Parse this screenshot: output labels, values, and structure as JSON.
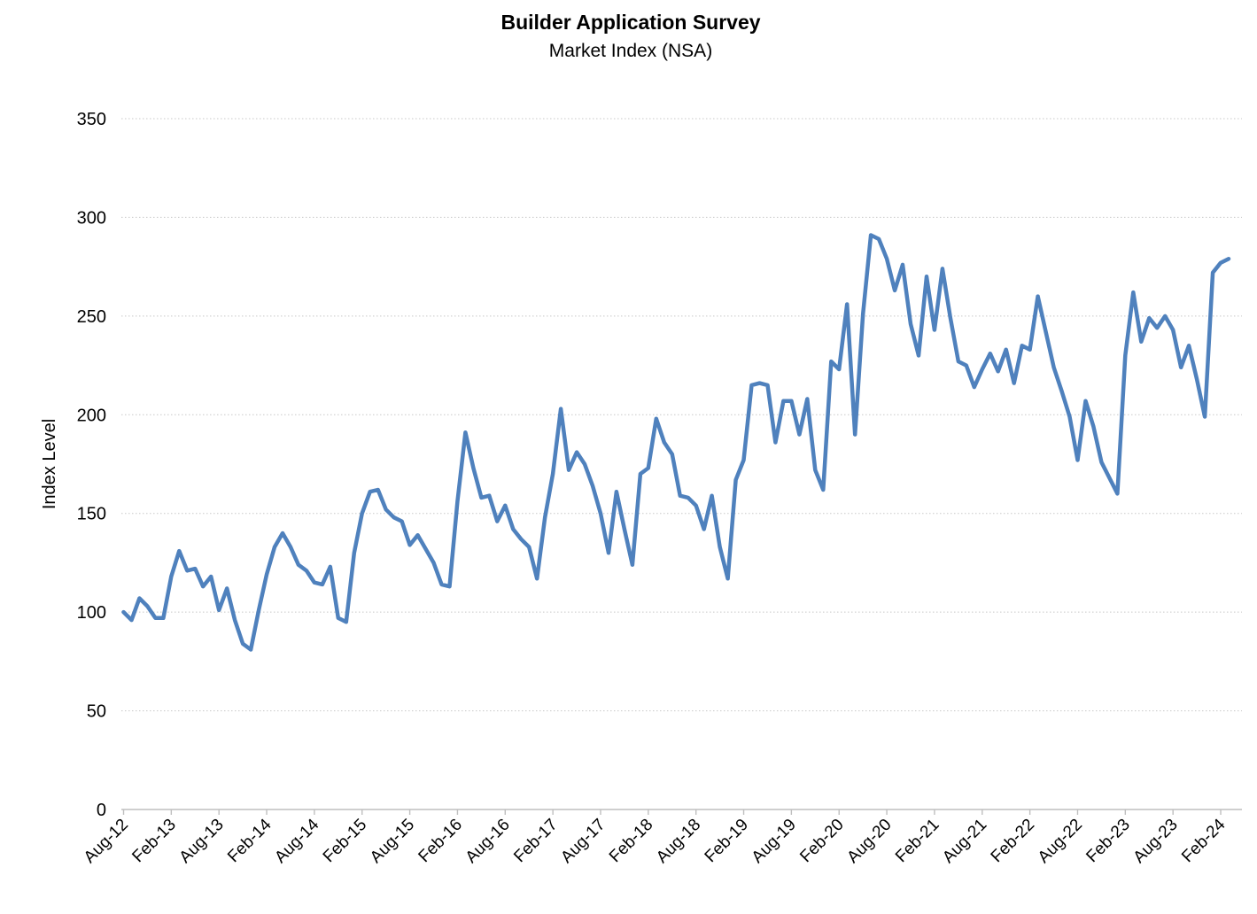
{
  "chart_data": {
    "type": "line",
    "title": "Builder Application Survey",
    "subtitle": "Market Index (NSA)",
    "ylabel": "Index Level",
    "xlabel": "",
    "ylim": [
      0,
      350
    ],
    "y_ticks": [
      0,
      50,
      100,
      150,
      200,
      250,
      300,
      350
    ],
    "grid": true,
    "gridline_style": "dotted",
    "legend": "none",
    "series_name": "Market Index (NSA)",
    "frequency": "monthly",
    "start_month": "Aug-12",
    "end_month": "Mar-24",
    "x_tick_labels": [
      "Aug-12",
      "Feb-13",
      "Aug-13",
      "Feb-14",
      "Aug-14",
      "Feb-15",
      "Aug-15",
      "Feb-16",
      "Aug-16",
      "Feb-17",
      "Aug-17",
      "Feb-18",
      "Aug-18",
      "Feb-19",
      "Aug-19",
      "Feb-20",
      "Aug-20",
      "Feb-21",
      "Aug-21",
      "Feb-22",
      "Aug-22",
      "Feb-23",
      "Aug-23",
      "Feb-24"
    ],
    "ticks_every_n_points": 6,
    "values": [
      100,
      96,
      107,
      103,
      97,
      97,
      118,
      131,
      121,
      122,
      113,
      118,
      101,
      112,
      96,
      84,
      81,
      101,
      119,
      133,
      140,
      133,
      124,
      121,
      115,
      114,
      123,
      97,
      95,
      130,
      150,
      161,
      162,
      152,
      148,
      146,
      134,
      139,
      132,
      125,
      114,
      113,
      156,
      191,
      173,
      158,
      159,
      146,
      154,
      142,
      137,
      133,
      117,
      148,
      170,
      203,
      172,
      181,
      175,
      164,
      150,
      130,
      161,
      142,
      124,
      170,
      173,
      198,
      186,
      180,
      159,
      158,
      154,
      142,
      159,
      133,
      117,
      167,
      177,
      215,
      216,
      215,
      186,
      207,
      207,
      190,
      208,
      172,
      162,
      227,
      223,
      256,
      190,
      251,
      291,
      289,
      279,
      263,
      276,
      246,
      230,
      270,
      243,
      274,
      249,
      227,
      225,
      214,
      223,
      231,
      222,
      233,
      216,
      235,
      233,
      260,
      242,
      224,
      212,
      199,
      177,
      207,
      194,
      176,
      168,
      160,
      230,
      262,
      237,
      249,
      244,
      250,
      243,
      224,
      235,
      218,
      199,
      272,
      277,
      279
    ],
    "colors": {
      "line": "#4F81BD",
      "gridline": "#C8C8C8",
      "axis": "#BFBFBF",
      "text": "#000000",
      "background": "#FFFFFF"
    }
  }
}
